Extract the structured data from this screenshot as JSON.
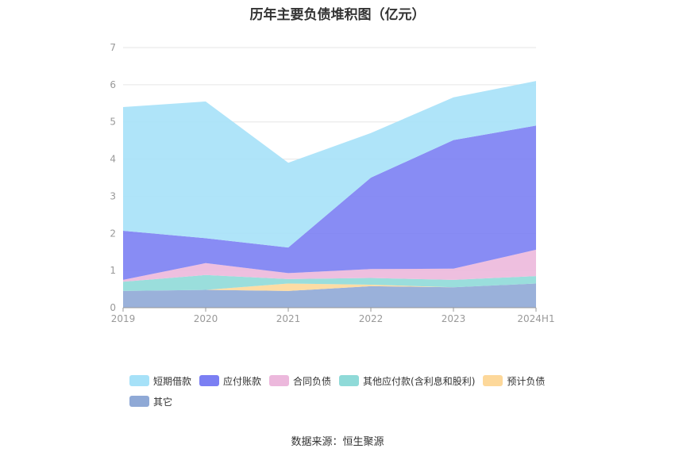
{
  "title": "历年主要负债堆积图（亿元）",
  "source": "数据来源：恒生聚源",
  "chart_data": {
    "type": "area",
    "stacked": true,
    "categories": [
      "2019",
      "2020",
      "2021",
      "2022",
      "2023",
      "2024H1"
    ],
    "ylim": [
      0,
      7
    ],
    "yticks": [
      0,
      1,
      2,
      3,
      4,
      5,
      6,
      7
    ],
    "grid": true,
    "legend_position": "bottom",
    "series": [
      {
        "name": "其它",
        "color": "#8fa9d6",
        "values": [
          0.45,
          0.48,
          0.45,
          0.58,
          0.55,
          0.65
        ]
      },
      {
        "name": "预计负债",
        "color": "#fdd89a",
        "values": [
          0.0,
          0.0,
          0.2,
          0.04,
          0.0,
          0.0
        ]
      },
      {
        "name": "其他应付款(含利息和股利)",
        "color": "#8fdad8",
        "values": [
          0.25,
          0.4,
          0.12,
          0.18,
          0.2,
          0.2
        ]
      },
      {
        "name": "合同负债",
        "color": "#ecb8dc",
        "values": [
          0.05,
          0.32,
          0.16,
          0.24,
          0.3,
          0.71
        ]
      },
      {
        "name": "应付账款",
        "color": "#7b7ff3",
        "values": [
          1.32,
          0.67,
          0.69,
          2.46,
          3.46,
          3.34
        ]
      },
      {
        "name": "短期借款",
        "color": "#a6e1f8",
        "values": [
          3.33,
          3.68,
          2.28,
          1.2,
          1.15,
          1.2
        ]
      }
    ],
    "legend_order": [
      "短期借款",
      "应付账款",
      "合同负债",
      "其他应付款(含利息和股利)",
      "预计负债",
      "其它"
    ]
  }
}
